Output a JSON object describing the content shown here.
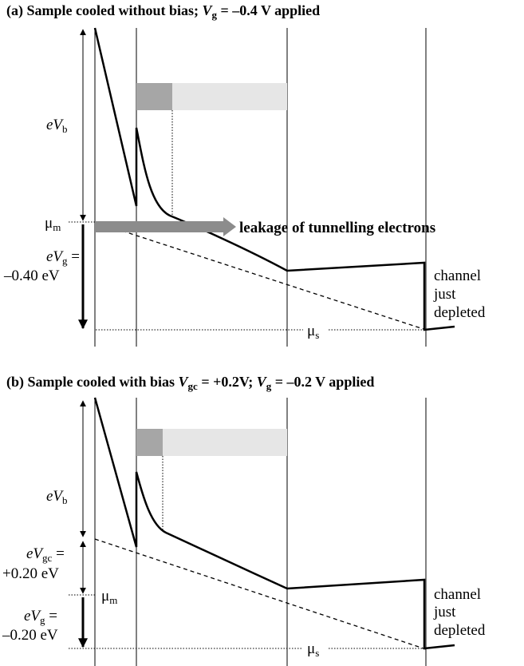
{
  "panel_a": {
    "title_prefix": "(a) Sample cooled without bias; ",
    "title_var": "V",
    "title_sub": "g",
    "title_suffix": " = –0.4 V applied",
    "ev_b_e": "eV",
    "ev_b_sub": "b",
    "mu_m": "μ",
    "mu_m_sub": "m",
    "ev_g_e": "eV",
    "ev_g_sub": "g",
    "ev_g_eq": " =",
    "ev_g_value": "–0.40 eV",
    "leakage_label": "leakage of tunnelling electrons",
    "channel_line1": "channel",
    "channel_line2": "just",
    "channel_line3": "depleted",
    "mu_s": "μ",
    "mu_s_sub": "s"
  },
  "panel_b": {
    "title_prefix": "(b) Sample cooled with bias ",
    "title_var1": "V",
    "title_sub1": "gc",
    "title_mid": " = +0.2V; ",
    "title_var2": "V",
    "title_sub2": "g",
    "title_suffix": " = –0.2 V applied",
    "ev_b_e": "eV",
    "ev_b_sub": "b",
    "ev_gc_e": "eV",
    "ev_gc_sub": "gc",
    "ev_gc_eq": " =",
    "ev_gc_value": "+0.20 eV",
    "mu_m": "μ",
    "mu_m_sub": "m",
    "ev_g_e": "eV",
    "ev_g_sub": "g",
    "ev_g_eq": " =",
    "ev_g_value": "–0.20 eV",
    "channel_line1": "channel",
    "channel_line2": "just",
    "channel_line3": "depleted",
    "mu_s": "μ",
    "mu_s_sub": "s"
  },
  "colors": {
    "line": "#000000",
    "dark_bar": "#a6a6a6",
    "light_bar": "#e6e6e6",
    "leak_arrow": "#8c8c8c"
  }
}
